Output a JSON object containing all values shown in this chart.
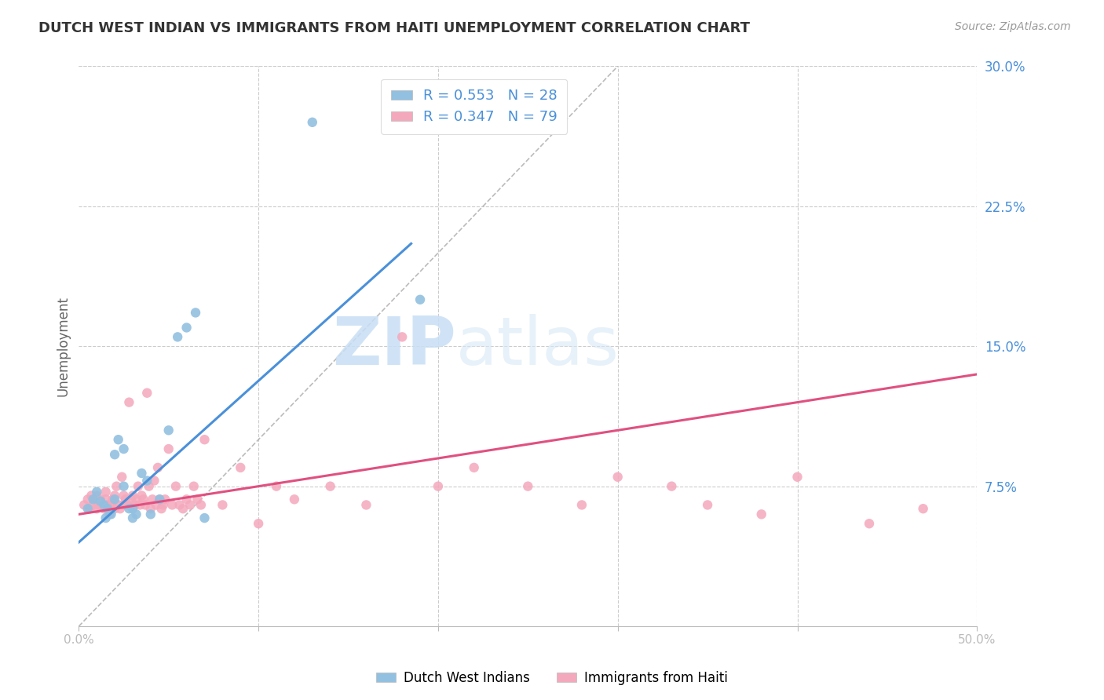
{
  "title": "DUTCH WEST INDIAN VS IMMIGRANTS FROM HAITI UNEMPLOYMENT CORRELATION CHART",
  "source": "Source: ZipAtlas.com",
  "ylabel": "Unemployment",
  "x_min": 0.0,
  "x_max": 0.5,
  "y_min": 0.0,
  "y_max": 0.3,
  "y_ticks_right": [
    0.075,
    0.15,
    0.225,
    0.3
  ],
  "y_tick_labels_right": [
    "7.5%",
    "15.0%",
    "22.5%",
    "30.0%"
  ],
  "blue_color": "#92c0e0",
  "pink_color": "#f4a8bc",
  "blue_line_color": "#4a90d9",
  "pink_line_color": "#e05080",
  "legend_label_blue": "Dutch West Indians",
  "legend_label_pink": "Immigrants from Haiti",
  "watermark_zip": "ZIP",
  "watermark_atlas": "atlas",
  "blue_scatter_x": [
    0.005,
    0.008,
    0.01,
    0.012,
    0.014,
    0.015,
    0.016,
    0.018,
    0.02,
    0.02,
    0.022,
    0.025,
    0.025,
    0.028,
    0.03,
    0.03,
    0.032,
    0.035,
    0.038,
    0.04,
    0.045,
    0.05,
    0.055,
    0.06,
    0.065,
    0.07,
    0.13,
    0.19
  ],
  "blue_scatter_y": [
    0.063,
    0.068,
    0.072,
    0.067,
    0.065,
    0.058,
    0.063,
    0.06,
    0.092,
    0.068,
    0.1,
    0.075,
    0.095,
    0.063,
    0.063,
    0.058,
    0.06,
    0.082,
    0.078,
    0.06,
    0.068,
    0.105,
    0.155,
    0.16,
    0.168,
    0.058,
    0.27,
    0.175
  ],
  "pink_scatter_x": [
    0.003,
    0.005,
    0.006,
    0.007,
    0.008,
    0.009,
    0.01,
    0.01,
    0.011,
    0.012,
    0.013,
    0.014,
    0.015,
    0.015,
    0.016,
    0.017,
    0.018,
    0.019,
    0.02,
    0.02,
    0.021,
    0.022,
    0.023,
    0.024,
    0.025,
    0.025,
    0.026,
    0.027,
    0.028,
    0.029,
    0.03,
    0.031,
    0.032,
    0.033,
    0.034,
    0.035,
    0.036,
    0.037,
    0.038,
    0.039,
    0.04,
    0.041,
    0.042,
    0.043,
    0.044,
    0.045,
    0.046,
    0.047,
    0.048,
    0.05,
    0.052,
    0.054,
    0.056,
    0.058,
    0.06,
    0.062,
    0.064,
    0.066,
    0.068,
    0.07,
    0.08,
    0.09,
    0.1,
    0.11,
    0.12,
    0.14,
    0.16,
    0.18,
    0.2,
    0.22,
    0.25,
    0.28,
    0.3,
    0.33,
    0.35,
    0.38,
    0.4,
    0.44,
    0.47
  ],
  "pink_scatter_y": [
    0.065,
    0.068,
    0.063,
    0.07,
    0.065,
    0.068,
    0.063,
    0.07,
    0.065,
    0.068,
    0.065,
    0.063,
    0.068,
    0.072,
    0.065,
    0.06,
    0.065,
    0.068,
    0.063,
    0.07,
    0.075,
    0.065,
    0.063,
    0.08,
    0.07,
    0.065,
    0.068,
    0.065,
    0.12,
    0.068,
    0.07,
    0.065,
    0.068,
    0.075,
    0.065,
    0.07,
    0.068,
    0.065,
    0.125,
    0.075,
    0.063,
    0.068,
    0.078,
    0.065,
    0.085,
    0.068,
    0.063,
    0.065,
    0.068,
    0.095,
    0.065,
    0.075,
    0.065,
    0.063,
    0.068,
    0.065,
    0.075,
    0.068,
    0.065,
    0.1,
    0.065,
    0.085,
    0.055,
    0.075,
    0.068,
    0.075,
    0.065,
    0.155,
    0.075,
    0.085,
    0.075,
    0.065,
    0.08,
    0.075,
    0.065,
    0.06,
    0.08,
    0.055,
    0.063
  ],
  "blue_line_x0": 0.0,
  "blue_line_y0": 0.045,
  "blue_line_x1": 0.185,
  "blue_line_y1": 0.205,
  "pink_line_x0": 0.0,
  "pink_line_y0": 0.06,
  "pink_line_x1": 0.5,
  "pink_line_y1": 0.135
}
